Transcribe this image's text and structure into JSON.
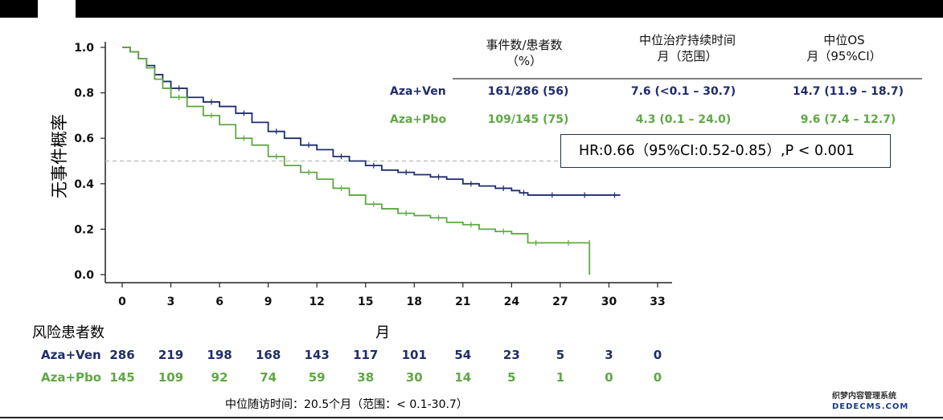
{
  "colors": {
    "ven": "#1f2d6b",
    "pbo": "#5fa843",
    "dash": "#b8b8b8"
  },
  "table": {
    "headers": [
      "事件数/患者数",
      "（%）",
      "中位治疗持续时间",
      "月（范围）",
      "中位OS",
      "月（95%CI）"
    ],
    "rows": [
      {
        "label": "Aza+Ven",
        "events": "161/286 (56)",
        "duration": "7.6 (<0.1 – 30.7)",
        "os": "14.7 (11.9 – 18.7)"
      },
      {
        "label": "Aza+Pbo",
        "events": "109/145 (75)",
        "duration": "4.3 (0.1 – 24.0)",
        "os": "9.6 (7.4 – 12.7)"
      }
    ]
  },
  "hr_text": "HR:0.66（95%CI:0.52-0.85）,P < 0.001",
  "risk": {
    "title": "风险患者数",
    "rows": [
      {
        "label": "Aza+Ven",
        "values": [
          "286",
          "219",
          "198",
          "168",
          "143",
          "117",
          "101",
          "54",
          "23",
          "5",
          "3",
          "0"
        ]
      },
      {
        "label": "Aza+Pbo",
        "values": [
          "145",
          "109",
          "92",
          "74",
          "59",
          "38",
          "30",
          "14",
          "5",
          "1",
          "0",
          "0"
        ]
      }
    ]
  },
  "footnote": "中位随访时间：20.5个月（范围：< 0.1-30.7）",
  "watermark": {
    "line1": "织梦内容管理系统",
    "line2": "DEDECMS.COM"
  },
  "chart_data": {
    "type": "line",
    "title": "",
    "xlabel": "月",
    "ylabel": "无事件概率",
    "xlim": [
      0,
      33
    ],
    "ylim": [
      0,
      1
    ],
    "x_ticks": [
      "0",
      "3",
      "6",
      "9",
      "12",
      "15",
      "18",
      "21",
      "24",
      "27",
      "30",
      "33"
    ],
    "y_ticks": [
      "0.0",
      "0.2",
      "0.4",
      "0.6",
      "0.8",
      "1.0"
    ],
    "reference_line": 0.5,
    "series": [
      {
        "name": "Aza+Ven",
        "x": [
          0,
          0.5,
          1,
          1.5,
          2,
          2.5,
          3,
          4,
          5,
          6,
          7,
          8,
          9,
          10,
          11,
          12,
          13,
          14,
          15,
          16,
          17,
          18,
          19,
          20,
          21,
          22,
          23,
          24,
          24.5,
          25,
          26,
          27,
          28,
          29,
          30,
          30.7
        ],
        "y": [
          1.0,
          0.98,
          0.95,
          0.92,
          0.88,
          0.85,
          0.82,
          0.78,
          0.76,
          0.74,
          0.71,
          0.67,
          0.63,
          0.6,
          0.57,
          0.55,
          0.52,
          0.5,
          0.48,
          0.46,
          0.45,
          0.44,
          0.43,
          0.42,
          0.4,
          0.39,
          0.38,
          0.37,
          0.36,
          0.35,
          0.35,
          0.35,
          0.35,
          0.35,
          0.35,
          0.35
        ]
      },
      {
        "name": "Aza+Pbo",
        "x": [
          0,
          0.5,
          1,
          1.5,
          2,
          2.5,
          3,
          4,
          5,
          6,
          7,
          8,
          9,
          10,
          11,
          12,
          13,
          14,
          15,
          16,
          17,
          18,
          19,
          20,
          21,
          22,
          23,
          24,
          25,
          26,
          27,
          28,
          28.8,
          28.8
        ],
        "y": [
          1.0,
          0.98,
          0.95,
          0.91,
          0.86,
          0.82,
          0.78,
          0.74,
          0.7,
          0.66,
          0.6,
          0.57,
          0.52,
          0.48,
          0.45,
          0.42,
          0.38,
          0.35,
          0.31,
          0.29,
          0.27,
          0.26,
          0.25,
          0.23,
          0.22,
          0.2,
          0.19,
          0.18,
          0.14,
          0.14,
          0.14,
          0.14,
          0.14,
          0.0
        ]
      }
    ]
  }
}
